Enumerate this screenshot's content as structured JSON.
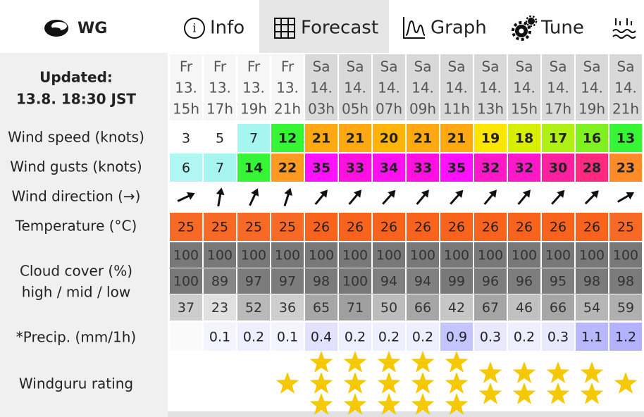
{
  "header": {
    "logo": "WG",
    "tabs": [
      "Info",
      "Forecast",
      "Graph",
      "Tune"
    ]
  },
  "updated": {
    "label": "Updated:",
    "time": "13.8. 18:30 JST"
  },
  "row_labels": {
    "wind_speed": "Wind speed (knots)",
    "wind_gusts": "Wind gusts (knots)",
    "wind_direction": "Wind direction (→)",
    "temperature": "Temperature (°C)",
    "cloud_cover": "Cloud cover (%)",
    "cloud_levels": "high / mid / low",
    "precip": "*Precip. (mm/1h)",
    "rating": "Windguru rating"
  },
  "forecast": {
    "days": [
      "Fr",
      "Fr",
      "Fr",
      "Fr",
      "Sa",
      "Sa",
      "Sa",
      "Sa",
      "Sa",
      "Sa",
      "Sa",
      "Sa",
      "Sa",
      "Sa"
    ],
    "dates": [
      "13.",
      "13.",
      "13.",
      "13.",
      "14.",
      "14.",
      "14.",
      "14.",
      "14.",
      "14.",
      "14.",
      "14.",
      "14.",
      "14."
    ],
    "hours": [
      "15h",
      "17h",
      "19h",
      "21h",
      "03h",
      "05h",
      "07h",
      "09h",
      "11h",
      "13h",
      "15h",
      "17h",
      "19h",
      "21h"
    ],
    "wind_speed": [
      3,
      5,
      7,
      12,
      21,
      21,
      20,
      21,
      21,
      19,
      18,
      17,
      16,
      13
    ],
    "wind_gusts": [
      6,
      7,
      14,
      22,
      35,
      33,
      34,
      33,
      35,
      32,
      32,
      30,
      28,
      23
    ],
    "temperature": [
      25,
      25,
      25,
      25,
      26,
      26,
      26,
      26,
      26,
      26,
      26,
      26,
      26,
      25
    ],
    "cloud_high": [
      100,
      100,
      100,
      100,
      100,
      100,
      100,
      100,
      100,
      100,
      100,
      100,
      100,
      100
    ],
    "cloud_mid": [
      100,
      89,
      97,
      97,
      98,
      100,
      94,
      94,
      99,
      96,
      96,
      95,
      98,
      98
    ],
    "cloud_low": [
      37,
      23,
      52,
      36,
      65,
      71,
      50,
      66,
      42,
      67,
      46,
      66,
      54,
      59
    ],
    "precip": [
      null,
      0.1,
      0.2,
      0.1,
      0.4,
      0.2,
      0.2,
      0.2,
      0.9,
      0.3,
      0.2,
      0.3,
      1.1,
      1.2
    ],
    "rating": [
      0,
      0,
      0,
      1,
      3,
      3,
      3,
      3,
      3,
      2,
      2,
      2,
      2,
      1
    ]
  }
}
